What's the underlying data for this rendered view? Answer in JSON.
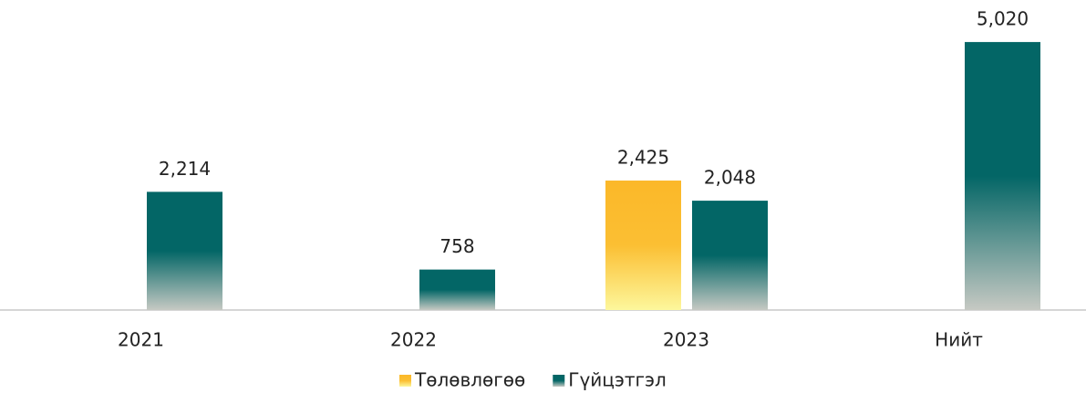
{
  "chart_data": {
    "type": "bar",
    "categories": [
      "2021",
      "2022",
      "2023",
      "Нийт"
    ],
    "series": [
      {
        "name": "Төлөвлөгөө",
        "color": "#fbb829",
        "values": [
          null,
          null,
          2425,
          null
        ],
        "value_labels": [
          null,
          null,
          "2,425",
          null
        ]
      },
      {
        "name": "Гүйцэтгэл",
        "color": "#036666",
        "values": [
          2214,
          758,
          2048,
          5020
        ],
        "value_labels": [
          "2,214",
          "758",
          "2,048",
          "5,020"
        ]
      }
    ],
    "ylim": [
      0,
      5500
    ],
    "legend": "bottom"
  }
}
